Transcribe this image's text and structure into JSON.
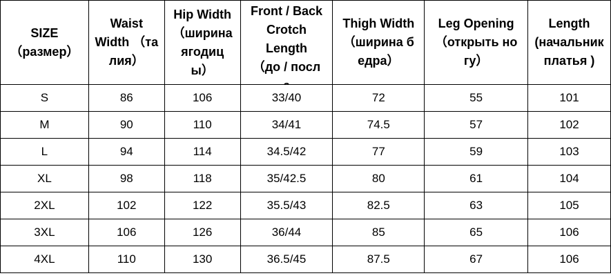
{
  "headers": [
    {
      "lines": [
        "SIZE",
        "（размер）"
      ]
    },
    {
      "lines": [
        "Waist",
        "Width （та",
        "лия）"
      ]
    },
    {
      "lines": [
        "Hip Width",
        "（ширина",
        "ягодиц",
        "ы）"
      ]
    },
    {
      "lines": [
        "Front / Back",
        "Crotch",
        "Length",
        "（до / посл",
        "е"
      ]
    },
    {
      "lines": [
        "Thigh Width",
        "（ширина б",
        "едра）"
      ]
    },
    {
      "lines": [
        "Leg Opening",
        "（открыть но",
        "гу）"
      ]
    },
    {
      "lines": [
        "Length",
        "(начальник",
        "платья )"
      ]
    }
  ],
  "rows": [
    [
      "S",
      "86",
      "106",
      "33/40",
      "72",
      "55",
      "101"
    ],
    [
      "M",
      "90",
      "110",
      "34/41",
      "74.5",
      "57",
      "102"
    ],
    [
      "L",
      "94",
      "114",
      "34.5/42",
      "77",
      "59",
      "103"
    ],
    [
      "XL",
      "98",
      "118",
      "35/42.5",
      "80",
      "61",
      "104"
    ],
    [
      "2XL",
      "102",
      "122",
      "35.5/43",
      "82.5",
      "63",
      "105"
    ],
    [
      "3XL",
      "106",
      "126",
      "36/44",
      "85",
      "65",
      "106"
    ],
    [
      "4XL",
      "110",
      "130",
      "36.5/45",
      "87.5",
      "67",
      "106"
    ]
  ]
}
